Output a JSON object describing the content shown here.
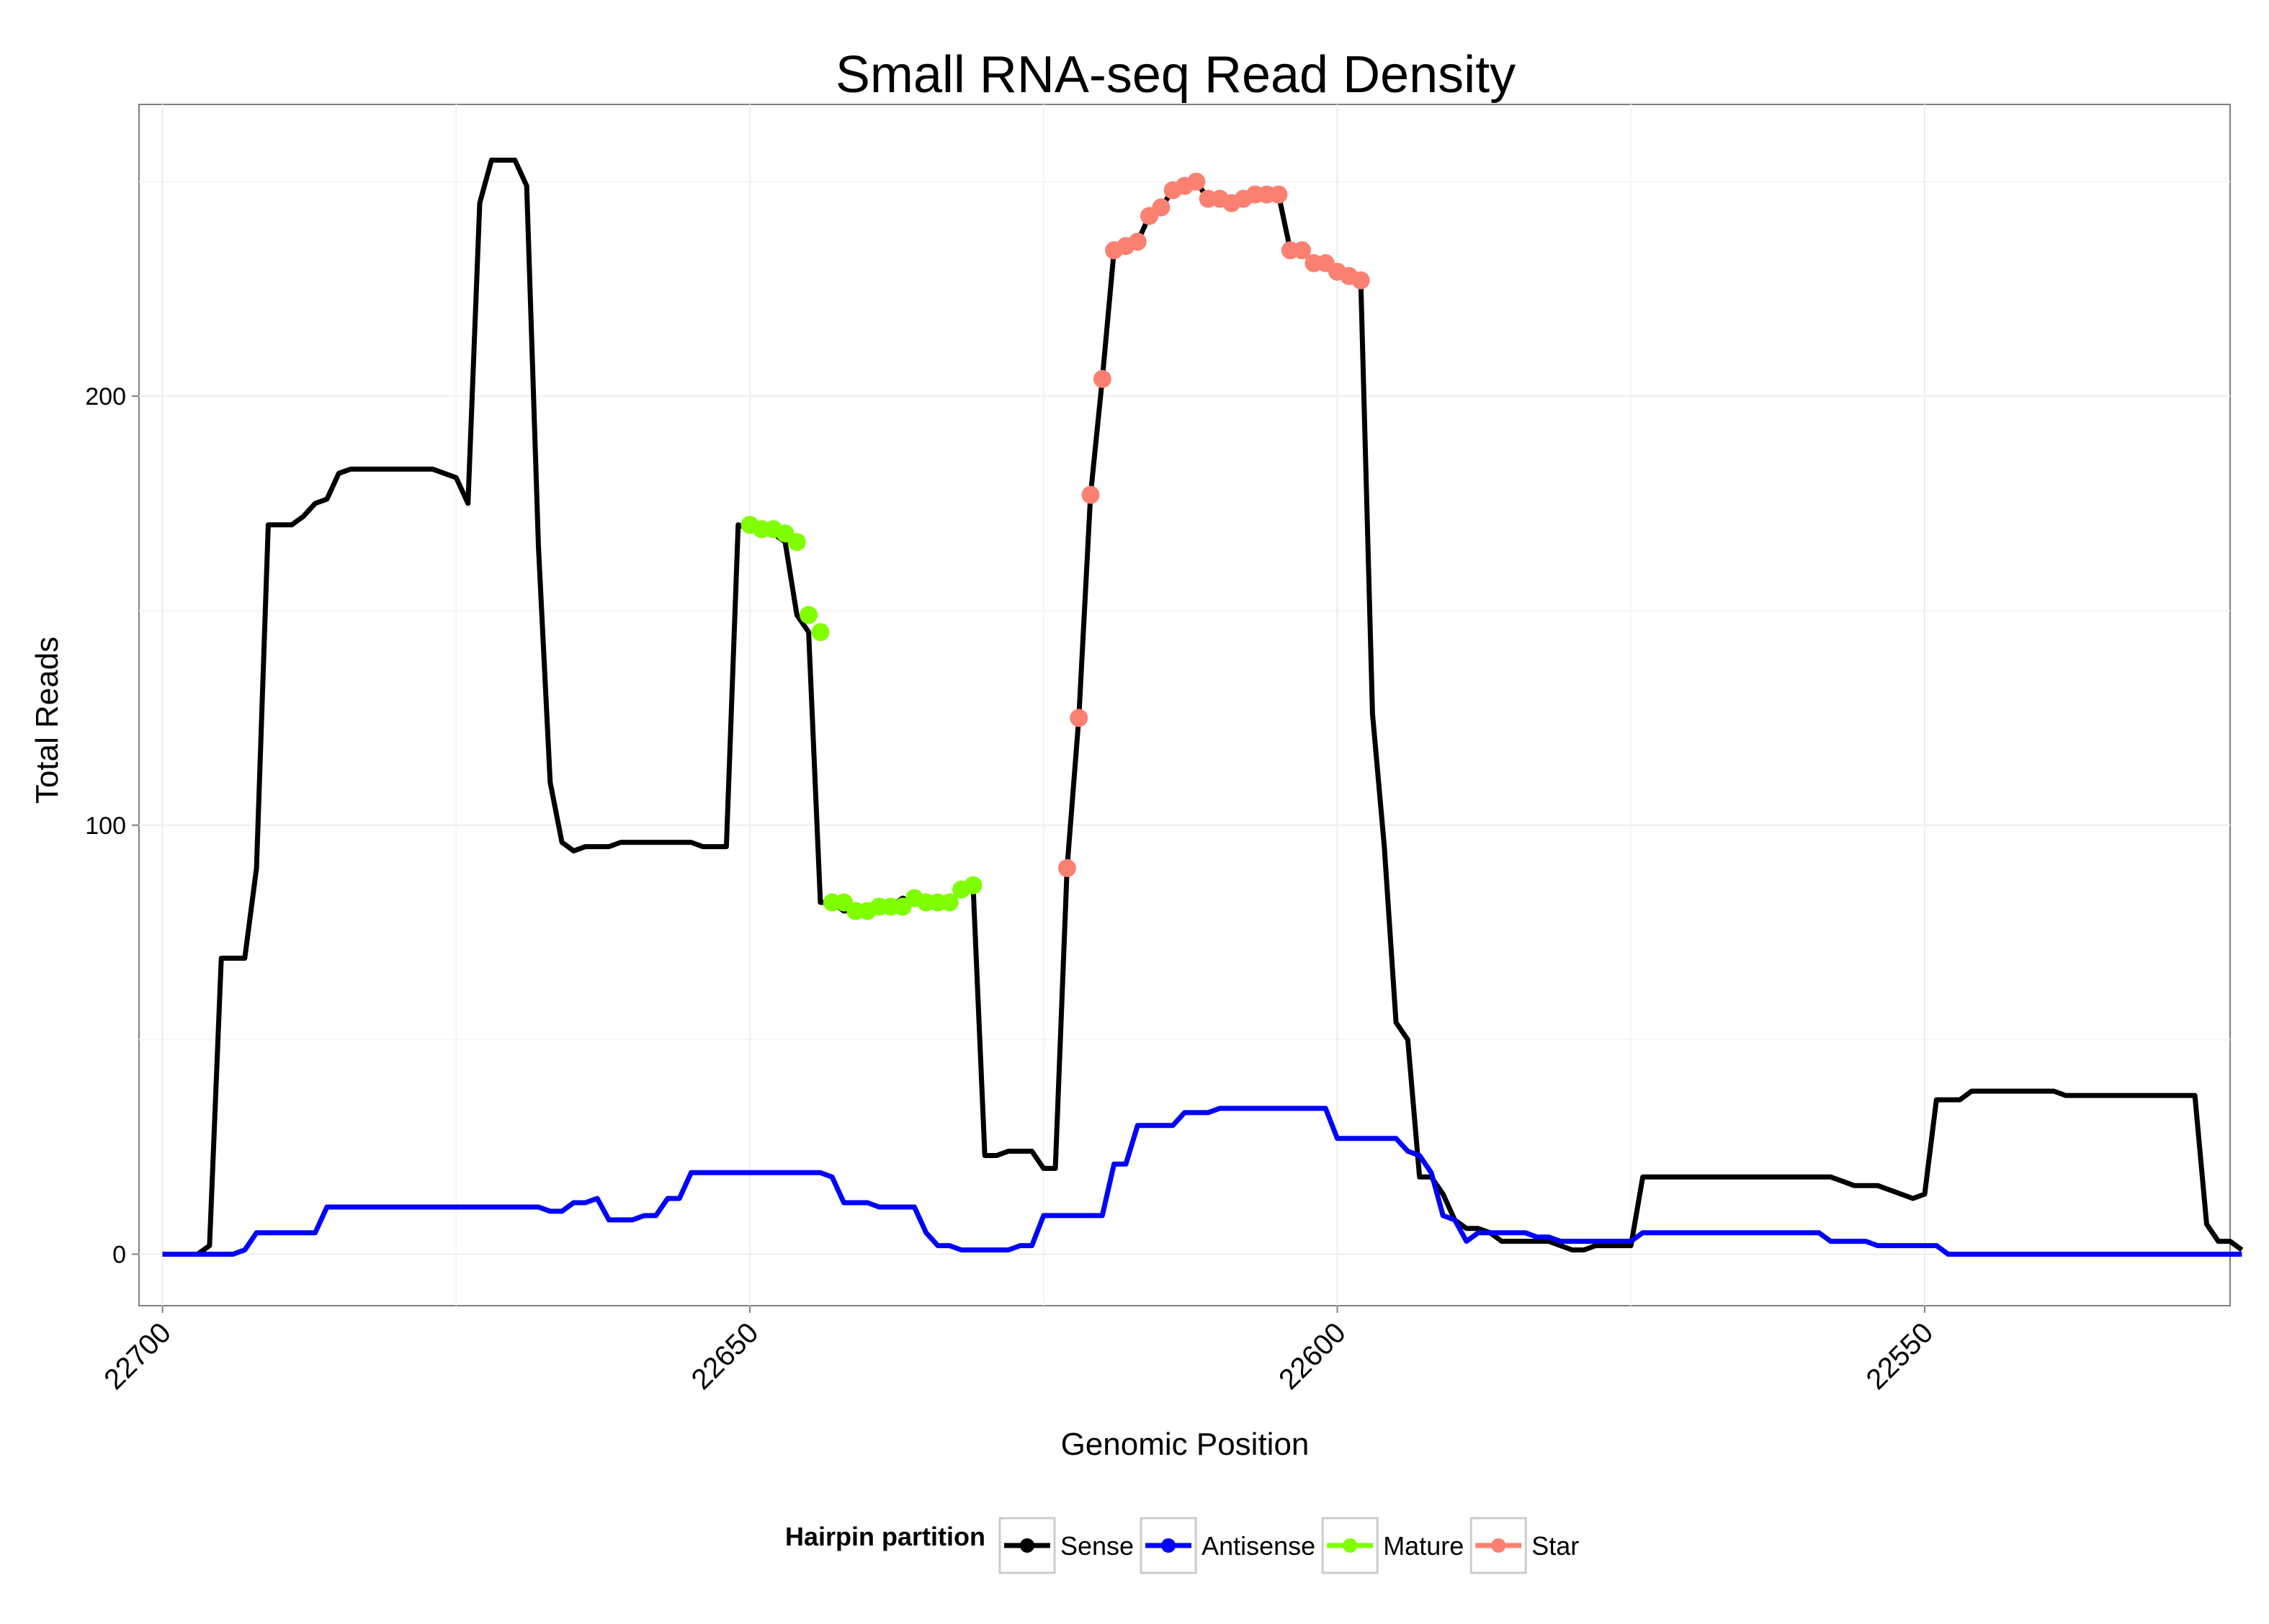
{
  "chart_data": {
    "type": "line",
    "title": "Small RNA-seq Read Density",
    "xlabel": "Genomic Position",
    "ylabel": "Total Reads",
    "x_reversed": true,
    "xlim": [
      22702,
      22524
    ],
    "ylim": [
      -12,
      268
    ],
    "x_ticks": [
      22700,
      22650,
      22600,
      22550
    ],
    "x_tick_labels": [
      "22700",
      "22650",
      "22600",
      "22550"
    ],
    "y_ticks": [
      0,
      100,
      200
    ],
    "y_tick_labels": [
      "0",
      "100",
      "200"
    ],
    "grid": true,
    "legend": {
      "title": "Hairpin partition",
      "position": "bottom",
      "entries": [
        {
          "label": "Sense",
          "color": "#000000"
        },
        {
          "label": "Antisense",
          "color": "#0000ff"
        },
        {
          "label": "Mature",
          "color": "#7fff00"
        },
        {
          "label": "Star",
          "color": "#fa8072"
        }
      ]
    },
    "series": [
      {
        "name": "Sense",
        "color": "#000000",
        "style": "line",
        "points": [
          [
            22700,
            0
          ],
          [
            22697,
            0
          ],
          [
            22696,
            2
          ],
          [
            22695,
            69
          ],
          [
            22693,
            69
          ],
          [
            22692,
            90
          ],
          [
            22691,
            170
          ],
          [
            22689,
            170
          ],
          [
            22688,
            172
          ],
          [
            22687,
            175
          ],
          [
            22686,
            176
          ],
          [
            22685,
            182
          ],
          [
            22684,
            183
          ],
          [
            22677,
            183
          ],
          [
            22676,
            182
          ],
          [
            22675,
            181
          ],
          [
            22674,
            175
          ],
          [
            22673,
            245
          ],
          [
            22672,
            255
          ],
          [
            22670,
            255
          ],
          [
            22669,
            249
          ],
          [
            22668,
            165
          ],
          [
            22667,
            110
          ],
          [
            22666,
            96
          ],
          [
            22665,
            94
          ],
          [
            22664,
            95
          ],
          [
            22662,
            95
          ],
          [
            22661,
            96
          ],
          [
            22655,
            96
          ],
          [
            22654,
            95
          ],
          [
            22652,
            95
          ],
          [
            22651,
            170
          ],
          [
            22650,
            169
          ],
          [
            22649,
            169
          ],
          [
            22648,
            168
          ],
          [
            22647,
            166
          ],
          [
            22646,
            149
          ],
          [
            22645,
            145
          ],
          [
            22644,
            82
          ],
          [
            22643,
            82
          ],
          [
            22642,
            80
          ],
          [
            22641,
            80
          ],
          [
            22640,
            81
          ],
          [
            22638,
            81
          ],
          [
            22637,
            83
          ],
          [
            22636,
            82
          ],
          [
            22634,
            82
          ],
          [
            22633,
            82
          ],
          [
            22632,
            85
          ],
          [
            22631,
            86
          ],
          [
            22630,
            23
          ],
          [
            22629,
            23
          ],
          [
            22628,
            24
          ],
          [
            22626,
            24
          ],
          [
            22625,
            20
          ],
          [
            22624,
            20
          ],
          [
            22623,
            90
          ],
          [
            22622,
            125
          ],
          [
            22621,
            177
          ],
          [
            22620,
            204
          ],
          [
            22619,
            234
          ],
          [
            22618,
            235
          ],
          [
            22617,
            236
          ],
          [
            22616,
            242
          ],
          [
            22615,
            244
          ],
          [
            22614,
            248
          ],
          [
            22613,
            249
          ],
          [
            22612,
            250
          ],
          [
            22611,
            246
          ],
          [
            22610,
            246
          ],
          [
            22609,
            245
          ],
          [
            22608,
            246
          ],
          [
            22607,
            247
          ],
          [
            22606,
            247
          ],
          [
            22605,
            247
          ],
          [
            22604,
            234
          ],
          [
            22603,
            234
          ],
          [
            22602,
            231
          ],
          [
            22601,
            231
          ],
          [
            22600,
            229
          ],
          [
            22599,
            228
          ],
          [
            22598,
            227
          ],
          [
            22597,
            126
          ],
          [
            22596,
            95
          ],
          [
            22595,
            54
          ],
          [
            22594,
            50
          ],
          [
            22593,
            18
          ],
          [
            22592,
            18
          ],
          [
            22591,
            14
          ],
          [
            22590,
            8
          ],
          [
            22589,
            6
          ],
          [
            22588,
            6
          ],
          [
            22587,
            5
          ],
          [
            22586,
            3
          ],
          [
            22582,
            3
          ],
          [
            22581,
            2
          ],
          [
            22580,
            1
          ],
          [
            22579,
            1
          ],
          [
            22578,
            2
          ],
          [
            22575,
            2
          ],
          [
            22574,
            18
          ],
          [
            22558,
            18
          ],
          [
            22557,
            17
          ],
          [
            22556,
            16
          ],
          [
            22554,
            16
          ],
          [
            22551,
            13
          ],
          [
            22550,
            14
          ],
          [
            22549,
            36
          ],
          [
            22547,
            36
          ],
          [
            22546,
            38
          ],
          [
            22539,
            38
          ],
          [
            22538,
            37
          ],
          [
            22527,
            37
          ],
          [
            22526,
            7
          ],
          [
            22525,
            3
          ],
          [
            22524,
            3
          ],
          [
            22523,
            1
          ]
        ]
      },
      {
        "name": "Antisense",
        "color": "#0000ff",
        "style": "line",
        "points": [
          [
            22700,
            0
          ],
          [
            22694,
            0
          ],
          [
            22693,
            1
          ],
          [
            22692,
            5
          ],
          [
            22687,
            5
          ],
          [
            22686,
            11
          ],
          [
            22672,
            11
          ],
          [
            22671,
            11
          ],
          [
            22668,
            11
          ],
          [
            22667,
            10
          ],
          [
            22666,
            10
          ],
          [
            22665,
            12
          ],
          [
            22664,
            12
          ],
          [
            22663,
            13
          ],
          [
            22662,
            8
          ],
          [
            22660,
            8
          ],
          [
            22659,
            9
          ],
          [
            22658,
            9
          ],
          [
            22657,
            13
          ],
          [
            22656,
            13
          ],
          [
            22655,
            19
          ],
          [
            22644,
            19
          ],
          [
            22643,
            18
          ],
          [
            22642,
            12
          ],
          [
            22640,
            12
          ],
          [
            22639,
            11
          ],
          [
            22636,
            11
          ],
          [
            22635,
            5
          ],
          [
            22634,
            2
          ],
          [
            22633,
            2
          ],
          [
            22632,
            1
          ],
          [
            22628,
            1
          ],
          [
            22627,
            2
          ],
          [
            22626,
            2
          ],
          [
            22625,
            9
          ],
          [
            22620,
            9
          ],
          [
            22619,
            21
          ],
          [
            22618,
            21
          ],
          [
            22617,
            30
          ],
          [
            22614,
            30
          ],
          [
            22613,
            33
          ],
          [
            22611,
            33
          ],
          [
            22610,
            34
          ],
          [
            22601,
            34
          ],
          [
            22600,
            27
          ],
          [
            22595,
            27
          ],
          [
            22594,
            24
          ],
          [
            22593,
            23
          ],
          [
            22592,
            19
          ],
          [
            22591,
            9
          ],
          [
            22590,
            8
          ],
          [
            22589,
            3
          ],
          [
            22588,
            5
          ],
          [
            22584,
            5
          ],
          [
            22583,
            4
          ],
          [
            22582,
            4
          ],
          [
            22581,
            3
          ],
          [
            22575,
            3
          ],
          [
            22574,
            5
          ],
          [
            22559,
            5
          ],
          [
            22558,
            3
          ],
          [
            22555,
            3
          ],
          [
            22554,
            2
          ],
          [
            22549,
            2
          ],
          [
            22548,
            0
          ],
          [
            22524,
            0
          ],
          [
            22523,
            0
          ]
        ]
      },
      {
        "name": "Mature",
        "color": "#7fff00",
        "style": "points",
        "points": [
          [
            22650,
            170
          ],
          [
            22649,
            169
          ],
          [
            22648,
            169
          ],
          [
            22647,
            168
          ],
          [
            22646,
            166
          ],
          [
            22645,
            149
          ],
          [
            22644,
            145
          ],
          [
            22643,
            82
          ],
          [
            22642,
            82
          ],
          [
            22641,
            80
          ],
          [
            22640,
            80
          ],
          [
            22639,
            81
          ],
          [
            22638,
            81
          ],
          [
            22637,
            81
          ],
          [
            22636,
            83
          ],
          [
            22635,
            82
          ],
          [
            22634,
            82
          ],
          [
            22633,
            82
          ],
          [
            22632,
            85
          ],
          [
            22631,
            86
          ]
        ]
      },
      {
        "name": "Star",
        "color": "#fa8072",
        "style": "points",
        "points": [
          [
            22623,
            90
          ],
          [
            22622,
            125
          ],
          [
            22621,
            177
          ],
          [
            22620,
            204
          ],
          [
            22619,
            234
          ],
          [
            22618,
            235
          ],
          [
            22617,
            236
          ],
          [
            22616,
            242
          ],
          [
            22615,
            244
          ],
          [
            22614,
            248
          ],
          [
            22613,
            249
          ],
          [
            22612,
            250
          ],
          [
            22611,
            246
          ],
          [
            22610,
            246
          ],
          [
            22609,
            245
          ],
          [
            22608,
            246
          ],
          [
            22607,
            247
          ],
          [
            22606,
            247
          ],
          [
            22605,
            247
          ],
          [
            22604,
            234
          ],
          [
            22603,
            234
          ],
          [
            22602,
            231
          ],
          [
            22601,
            231
          ],
          [
            22600,
            229
          ],
          [
            22599,
            228
          ],
          [
            22598,
            227
          ]
        ]
      }
    ]
  }
}
